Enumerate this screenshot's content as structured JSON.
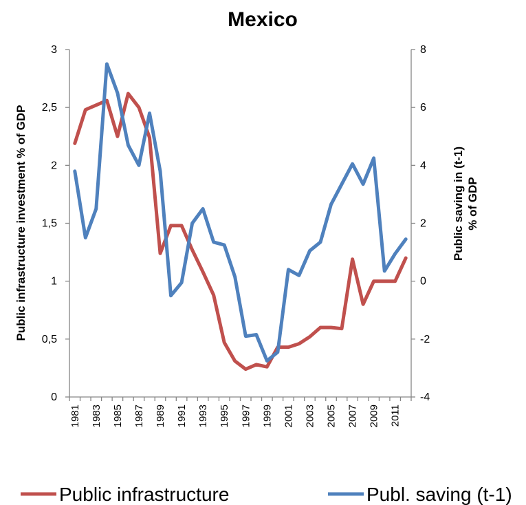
{
  "chart_data": {
    "type": "line",
    "title": "Mexico",
    "y_left_label": "Public infrastructure investment % of GDP",
    "y_right_label_lines": [
      "Public saving in (t-1)",
      "% of GDP"
    ],
    "y_left_lim": [
      0,
      3
    ],
    "y_left_ticks": [
      "0",
      "0,5",
      "1",
      "1,5",
      "2",
      "2,5",
      "3"
    ],
    "y_left_tick_values": [
      0,
      0.5,
      1,
      1.5,
      2,
      2.5,
      3
    ],
    "y_right_lim": [
      -4,
      8
    ],
    "y_right_ticks": [
      "-4",
      "-2",
      "0",
      "2",
      "4",
      "6",
      "8"
    ],
    "y_right_tick_values": [
      -4,
      -2,
      0,
      2,
      4,
      6,
      8
    ],
    "x": [
      1981,
      1982,
      1983,
      1984,
      1985,
      1986,
      1987,
      1988,
      1989,
      1990,
      1991,
      1992,
      1993,
      1994,
      1995,
      1996,
      1997,
      1998,
      1999,
      2000,
      2001,
      2002,
      2003,
      2004,
      2005,
      2006,
      2007,
      2008,
      2009,
      2010,
      2011,
      2012
    ],
    "x_tick_labels": [
      "1981",
      "1983",
      "1985",
      "1987",
      "1989",
      "1991",
      "1993",
      "1995",
      "1997",
      "1999",
      "2001",
      "2003",
      "2005",
      "2007",
      "2009",
      "2011"
    ],
    "grid": false,
    "legend_position": "bottom",
    "series": [
      {
        "name": "Public infrastructure",
        "axis": "left",
        "color": "#C0504D",
        "values": [
          2.19,
          2.48,
          2.52,
          2.56,
          2.25,
          2.62,
          2.5,
          2.24,
          1.24,
          1.48,
          1.48,
          1.27,
          1.08,
          0.88,
          0.47,
          0.31,
          0.24,
          0.28,
          0.26,
          0.43,
          0.43,
          0.46,
          0.52,
          0.6,
          0.6,
          0.59,
          1.19,
          0.8,
          1.0,
          1.0,
          1.0,
          1.2
        ]
      },
      {
        "name": "Publ. saving (t-1)",
        "axis": "right",
        "color": "#4F81BD",
        "values": [
          3.8,
          1.5,
          2.5,
          7.5,
          6.5,
          4.7,
          4.0,
          5.8,
          3.8,
          -0.5,
          -0.05,
          2.0,
          2.5,
          1.35,
          1.25,
          0.15,
          -1.9,
          -1.85,
          -2.75,
          -2.45,
          0.4,
          0.2,
          1.05,
          1.35,
          2.65,
          3.35,
          4.05,
          3.35,
          4.25,
          0.35,
          0.95,
          1.45
        ]
      }
    ]
  }
}
